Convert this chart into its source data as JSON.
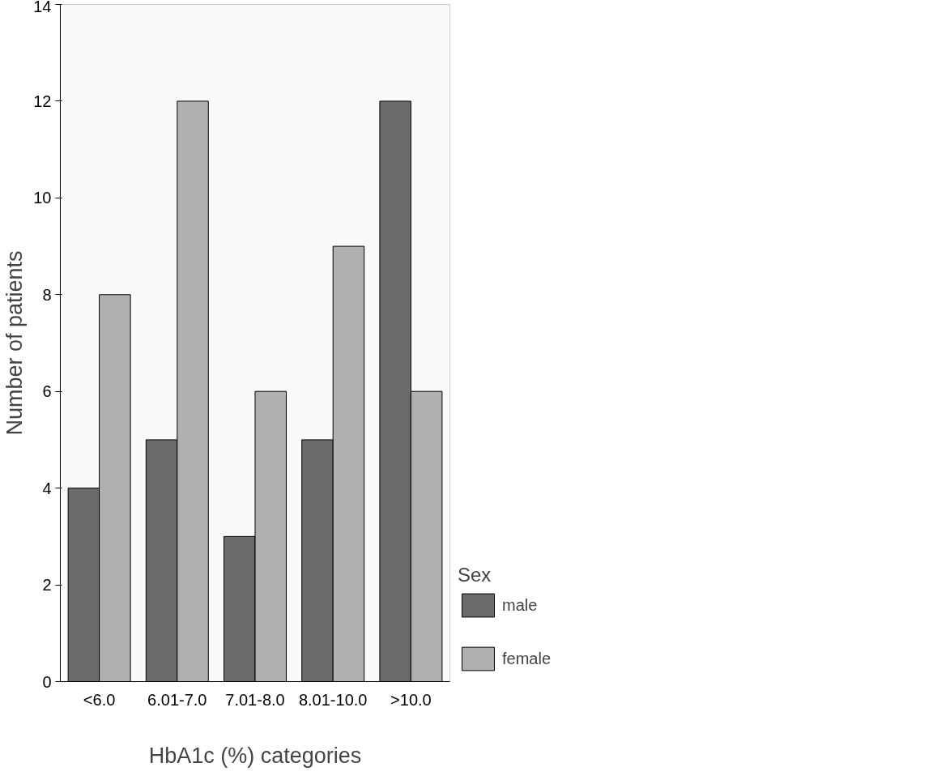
{
  "chart_data": {
    "type": "bar",
    "xlabel": "HbA1c (%) categories",
    "ylabel": "Number of patients",
    "legend_title": "Sex",
    "categories": [
      "<6.0",
      "6.01-7.0",
      "7.01-8.0",
      "8.01-10.0",
      ">10.0"
    ],
    "series": [
      {
        "name": "male",
        "color": "#6b6b6b",
        "values": [
          4,
          5,
          3,
          5,
          12
        ]
      },
      {
        "name": "female",
        "color": "#b0b0b0",
        "values": [
          8,
          12,
          6,
          9,
          6
        ]
      }
    ],
    "ylim": [
      0,
      14
    ],
    "yticks": [
      0,
      2,
      4,
      6,
      8,
      10,
      12,
      14
    ],
    "grid": false,
    "legend": "bottom right"
  }
}
